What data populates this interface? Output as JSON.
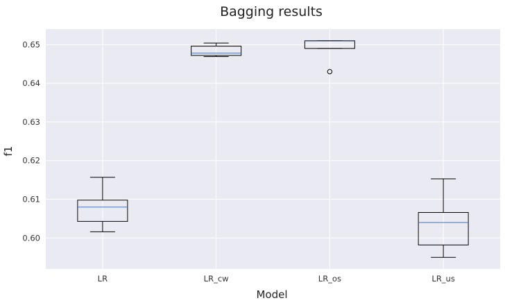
{
  "chart_data": {
    "type": "box",
    "title": "Bagging results",
    "xlabel": "Model",
    "ylabel": "f1",
    "ylim": [
      0.592,
      0.654
    ],
    "yticks": [
      0.6,
      0.61,
      0.62,
      0.63,
      0.64,
      0.65
    ],
    "ytick_labels": [
      "0.60",
      "0.61",
      "0.62",
      "0.63",
      "0.64",
      "0.65"
    ],
    "categories": [
      "LR",
      "LR_cw",
      "LR_os",
      "LR_us"
    ],
    "boxes": [
      {
        "category": "LR",
        "whisker_low": 0.6016,
        "q1": 0.6043,
        "median": 0.608,
        "q3": 0.6098,
        "whisker_high": 0.6157,
        "outliers": []
      },
      {
        "category": "LR_cw",
        "whisker_low": 0.6469,
        "q1": 0.6472,
        "median": 0.6478,
        "q3": 0.6496,
        "whisker_high": 0.6504,
        "outliers": []
      },
      {
        "category": "LR_os",
        "whisker_low": 0.649,
        "q1": 0.649,
        "median": 0.6509,
        "q3": 0.651,
        "whisker_high": 0.651,
        "outliers": [
          0.643
        ]
      },
      {
        "category": "LR_us",
        "whisker_low": 0.595,
        "q1": 0.5982,
        "median": 0.604,
        "q3": 0.6066,
        "whisker_high": 0.6153,
        "outliers": []
      }
    ],
    "grid": true,
    "legend": "none",
    "colors": {
      "plot_background": "#eaeaf2",
      "grid": "#ffffff",
      "box_edge": "#000000",
      "median": "#4c72b0"
    }
  }
}
